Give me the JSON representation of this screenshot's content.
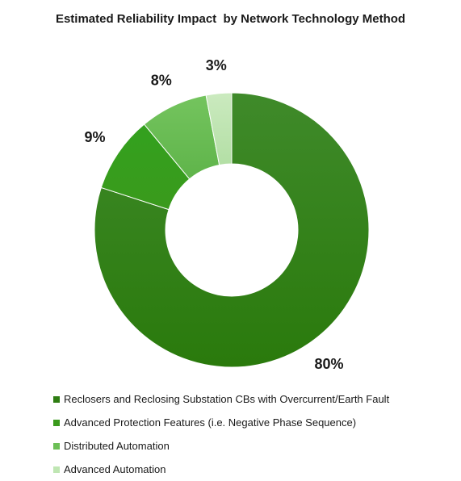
{
  "chart_data": {
    "type": "pie",
    "title": "Estimated Reliability Impact  by Network Technology Method",
    "categories": [
      "Reclosers and Reclosing Substation CBs with Overcurrent/Earth Fault",
      "Advanced Protection Features (i.e. Negative Phase Sequence)",
      "Distributed Automation",
      "Advanced Automation"
    ],
    "values": [
      80,
      9,
      8,
      3
    ],
    "value_labels": [
      "80%",
      "9%",
      "8%",
      "3%"
    ],
    "colors": [
      "#2e7d12",
      "#3a9a1c",
      "#6cbf56",
      "#bfe6b3"
    ],
    "legend_position": "bottom",
    "donut": true
  }
}
